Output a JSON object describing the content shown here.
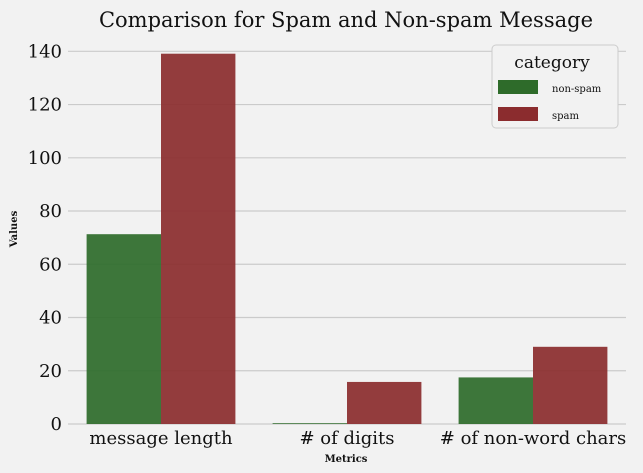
{
  "chart_data": {
    "type": "bar",
    "title": "Comparison for Spam and Non-spam Message",
    "xlabel": "Metrics",
    "ylabel": "Values",
    "categories": [
      "message length",
      "# of digits",
      "# of non-word chars"
    ],
    "series": [
      {
        "name": "non-spam",
        "values": [
          71.3,
          0.3,
          17.5
        ],
        "color": "#2e6b2a"
      },
      {
        "name": "spam",
        "values": [
          139.1,
          15.8,
          29.0
        ],
        "color": "#8b2c2e"
      }
    ],
    "ylim": [
      0,
      145
    ],
    "yticks": [
      0,
      20,
      40,
      60,
      80,
      100,
      120,
      140
    ],
    "grid": "horizontal",
    "legend": {
      "title": "category",
      "placement": "top-right"
    }
  }
}
